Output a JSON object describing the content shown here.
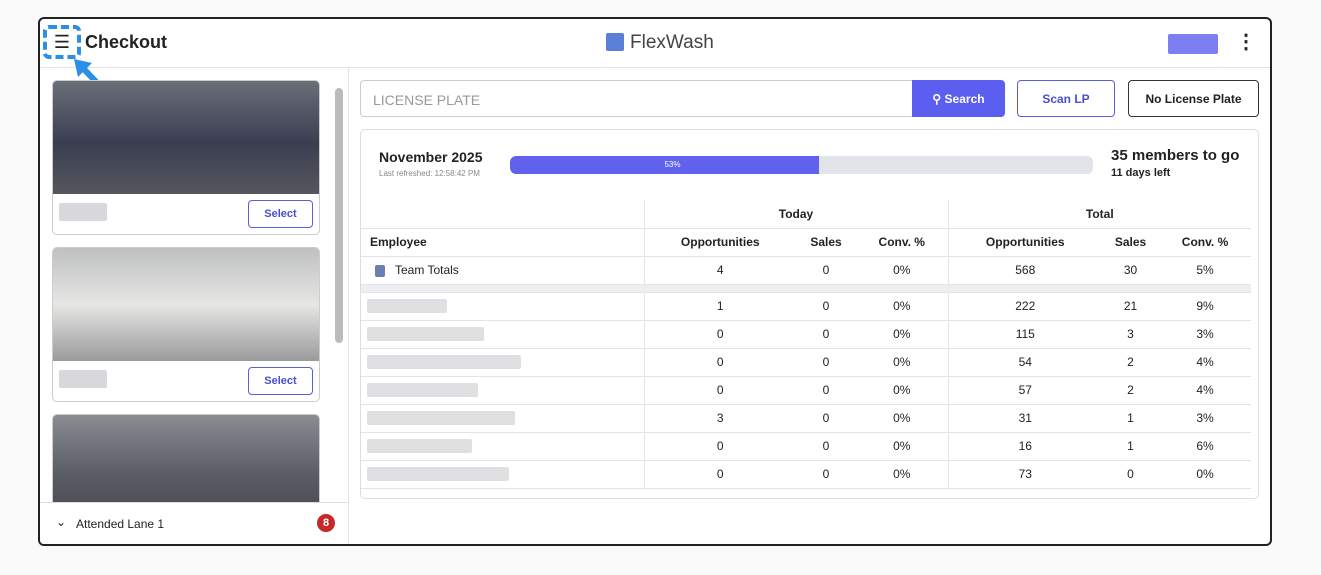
{
  "header": {
    "title": "Checkout",
    "brand": "FlexWash"
  },
  "queue": {
    "cards": [
      {
        "button": "Select"
      },
      {
        "button": "Select"
      }
    ],
    "lane": "Attended Lane 1",
    "badge": "8"
  },
  "search": {
    "placeholder": "LICENSE PLATE",
    "search_button": "Search",
    "scan_button": "Scan LP",
    "no_plate_button": "No License Plate"
  },
  "progress": {
    "month": "November 2025",
    "refreshed": "Last refreshed: 12:58:42 PM",
    "percent": 53,
    "percent_label": "53%",
    "members": "35 members to go",
    "days": "11 days left"
  },
  "table": {
    "groups": [
      "Today",
      "Total"
    ],
    "columns": [
      "Employee",
      "Opportunities",
      "Sales",
      "Conv. %",
      "Opportunities",
      "Sales",
      "Conv. %"
    ],
    "totals": {
      "name": "Team Totals",
      "cells": [
        "4",
        "0",
        "0%",
        "568",
        "30",
        "5%"
      ]
    },
    "rows": [
      [
        "1",
        "0",
        "0%",
        "222",
        "21",
        "9%"
      ],
      [
        "0",
        "0",
        "0%",
        "115",
        "3",
        "3%"
      ],
      [
        "0",
        "0",
        "0%",
        "54",
        "2",
        "4%"
      ],
      [
        "0",
        "0",
        "0%",
        "57",
        "2",
        "4%"
      ],
      [
        "3",
        "0",
        "0%",
        "31",
        "1",
        "3%"
      ],
      [
        "0",
        "0",
        "0%",
        "16",
        "1",
        "6%"
      ],
      [
        "0",
        "0",
        "0%",
        "73",
        "0",
        "0%"
      ]
    ]
  }
}
